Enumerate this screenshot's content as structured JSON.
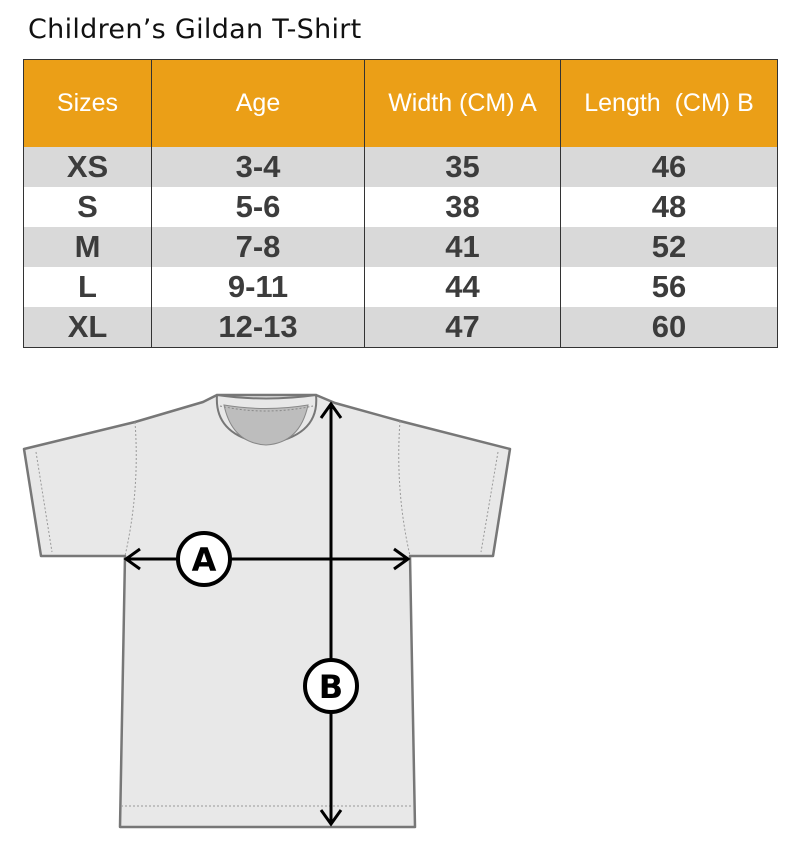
{
  "title": "Children’s Gildan T-Shirt",
  "table": {
    "headers": [
      "Sizes",
      "Age",
      "Width (CM) A",
      "Length  (CM) B"
    ],
    "rows": [
      [
        "XS",
        "3-4",
        "35",
        "46"
      ],
      [
        "S",
        "5-6",
        "38",
        "48"
      ],
      [
        "M",
        "7-8",
        "41",
        "52"
      ],
      [
        "L",
        "9-11",
        "44",
        "56"
      ],
      [
        "XL",
        "12-13",
        "47",
        "60"
      ]
    ]
  },
  "diagram": {
    "label_a": "A",
    "label_b": "B"
  },
  "colors": {
    "header": "#eb9f17",
    "stripe": "#d9d9d9",
    "shirt": "#e8e8e8"
  }
}
